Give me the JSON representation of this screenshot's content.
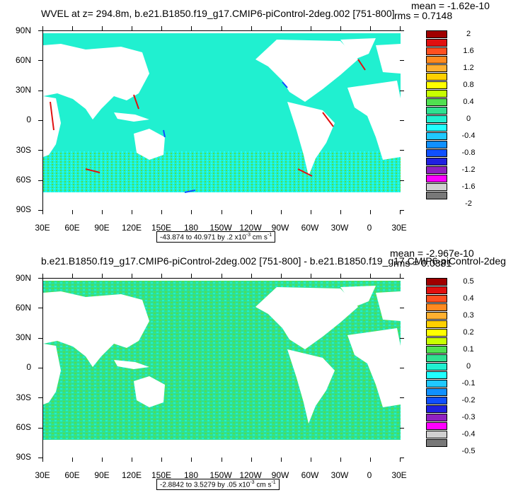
{
  "panels": [
    {
      "title": "WVEL at z= 294.8m, b.e21.B1850.f19_g17.CMIP6-piControl-2deg.002 [751-800]",
      "mean": "mean = -1.62e-10",
      "rms": "rms = 0.7148",
      "info_range": "-43.874 to 40.971 by .2 x10",
      "info_exp": "-3",
      "info_units": " cm s",
      "info_units_exp": "-1",
      "lat_labels": [
        "90N",
        "60N",
        "30N",
        "0",
        "30S",
        "60S",
        "90S"
      ],
      "lon_labels": [
        "30E",
        "60E",
        "90E",
        "120E",
        "150E",
        "180",
        "150W",
        "120W",
        "90W",
        "60W",
        "30W",
        "0",
        "30E"
      ],
      "colorbar_labels": [
        "2",
        "1.6",
        "1.2",
        "0.8",
        "0.4",
        "0",
        "-0.4",
        "-0.8",
        "-1.2",
        "-1.6",
        "-2"
      ],
      "colorbar_colors": [
        "#a00000",
        "#e01010",
        "#ff5020",
        "#ff8a20",
        "#ffb030",
        "#ffd000",
        "#ffff00",
        "#c8ff00",
        "#50e050",
        "#30e090",
        "#20f0d0",
        "#20ffff",
        "#20c8ff",
        "#1090ff",
        "#1050ff",
        "#2020e0",
        "#9020c0",
        "#ff00ff",
        "#d0d0d0",
        "#787878"
      ]
    },
    {
      "title": "b.e21.B1850.f19_g17.CMIP6-piControl-2deg.002 [751-800] - b.e21.B1850.f19_g17.CMIP6-piControl-2deg",
      "mean": "mean = -2.967e-10",
      "rms": "rms = 0.0381",
      "info_range": "-2.8842 to 3.5279 by .05 x10",
      "info_exp": "-3",
      "info_units": " cm s",
      "info_units_exp": "-1",
      "lat_labels": [
        "90N",
        "60N",
        "30N",
        "0",
        "30S",
        "60S",
        "90S"
      ],
      "lon_labels": [
        "30E",
        "60E",
        "90E",
        "120E",
        "150E",
        "180",
        "150W",
        "120W",
        "90W",
        "60W",
        "30W",
        "0",
        "30E"
      ],
      "colorbar_labels": [
        "0.5",
        "0.4",
        "0.3",
        "0.2",
        "0.1",
        "0",
        "-0.1",
        "-0.2",
        "-0.3",
        "-0.4",
        "-0.5"
      ],
      "colorbar_colors": [
        "#a00000",
        "#e01010",
        "#ff5020",
        "#ff8a20",
        "#ffb030",
        "#ffd000",
        "#ffff00",
        "#c8ff00",
        "#50e050",
        "#30e090",
        "#20f0d0",
        "#20ffff",
        "#20c8ff",
        "#1090ff",
        "#1050ff",
        "#2020e0",
        "#9020c0",
        "#ff00ff",
        "#d0d0d0",
        "#787878"
      ]
    }
  ],
  "colors": {
    "ocean_panel1": "#20f0d0",
    "band_panel1": "#50e050",
    "ocean_panel2": "#30e090",
    "band_panel2": "#20f0d0",
    "land": "#ffffff"
  }
}
